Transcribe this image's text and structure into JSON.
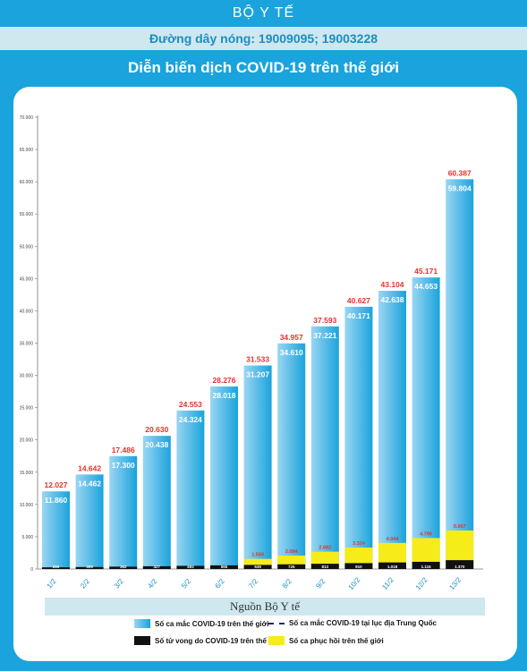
{
  "header": {
    "org": "BỘ Y TẾ",
    "hotline": "Đường dây nóng: 19009095; 19003228"
  },
  "title": "Diễn biến  dịch COVID-19 trên thế giới",
  "source": "Nguồn Bộ Y tế",
  "legend": {
    "world_cases": "Số ca mắc COVID-19 trên thế giới",
    "china_cases": "Số ca mắc COVID-19 tại  lục địa Trung Quốc",
    "deaths": "Số tử vong do COVID-19 trên thế giới",
    "recovered": "Số ca phục hồi trên thế giới"
  },
  "colors": {
    "blue": "#1aa3dc",
    "light_blue": "#9ad6f3",
    "red_label": "#e4332c",
    "yellow": "#f5ec1a",
    "black": "#111111"
  },
  "chart_data": {
    "type": "bar",
    "categories": [
      "1/2",
      "2/2",
      "3/2",
      "4/2",
      "5/2",
      "6/2",
      "7/2",
      "8/2",
      "9/2",
      "10/2",
      "11/2",
      "12/2",
      "13/2"
    ],
    "ylim": [
      0,
      70000
    ],
    "yticks": [
      0,
      5000,
      10000,
      15000,
      20000,
      25000,
      30000,
      35000,
      40000,
      45000,
      50000,
      55000,
      60000,
      65000,
      70000
    ],
    "ytick_labels": [
      "0",
      "5.000",
      "10.000",
      "15.000",
      "20.000",
      "25.000",
      "30.000",
      "35.000",
      "40.000",
      "45.000",
      "50.000",
      "55.000",
      "60.000",
      "65.000",
      "70.000"
    ],
    "series": [
      {
        "name": "Số ca mắc COVID-19 trên thế giới",
        "values": [
          12027,
          14642,
          17486,
          20630,
          24553,
          28276,
          31533,
          34957,
          37593,
          40627,
          43104,
          45171,
          60387
        ],
        "labels": [
          "12.027",
          "14.642",
          "17.486",
          "20.630",
          "24.553",
          "28.276",
          "31.533",
          "34.957",
          "37.593",
          "40.627",
          "43.104",
          "45.171",
          "60.387"
        ]
      },
      {
        "name": "Số ca mắc COVID-19 tại  lục địa Trung Quốc",
        "values": [
          11860,
          14462,
          17300,
          20438,
          24324,
          28018,
          31207,
          34610,
          37221,
          40171,
          42638,
          44653,
          59804
        ],
        "labels": [
          "11.860",
          "14.462",
          "17.300",
          "20.438",
          "24.324",
          "28.018",
          "31.207",
          "34.610",
          "37.221",
          "40.171",
          "42.638",
          "44.653",
          "59.804"
        ]
      },
      {
        "name": "Số ca phục hồi trên thế giới",
        "values": [
          null,
          null,
          null,
          null,
          null,
          null,
          1569,
          2084,
          2682,
          3324,
          4044,
          4799,
          5967
        ],
        "labels": [
          "",
          "",
          "",
          "",
          "",
          "",
          "1.569",
          "2.084",
          "2.682",
          "3.324",
          "4.044",
          "4.799",
          "5.967"
        ]
      },
      {
        "name": "Số tử vong do COVID-19 trên thế giới",
        "values": [
          259,
          305,
          362,
          427,
          493,
          565,
          639,
          725,
          813,
          910,
          1018,
          1115,
          1370
        ],
        "labels": [
          "259",
          "305",
          "362",
          "427",
          "493",
          "565",
          "639",
          "725",
          "813",
          "910",
          "1.018",
          "1.115",
          "1.370"
        ]
      }
    ]
  }
}
